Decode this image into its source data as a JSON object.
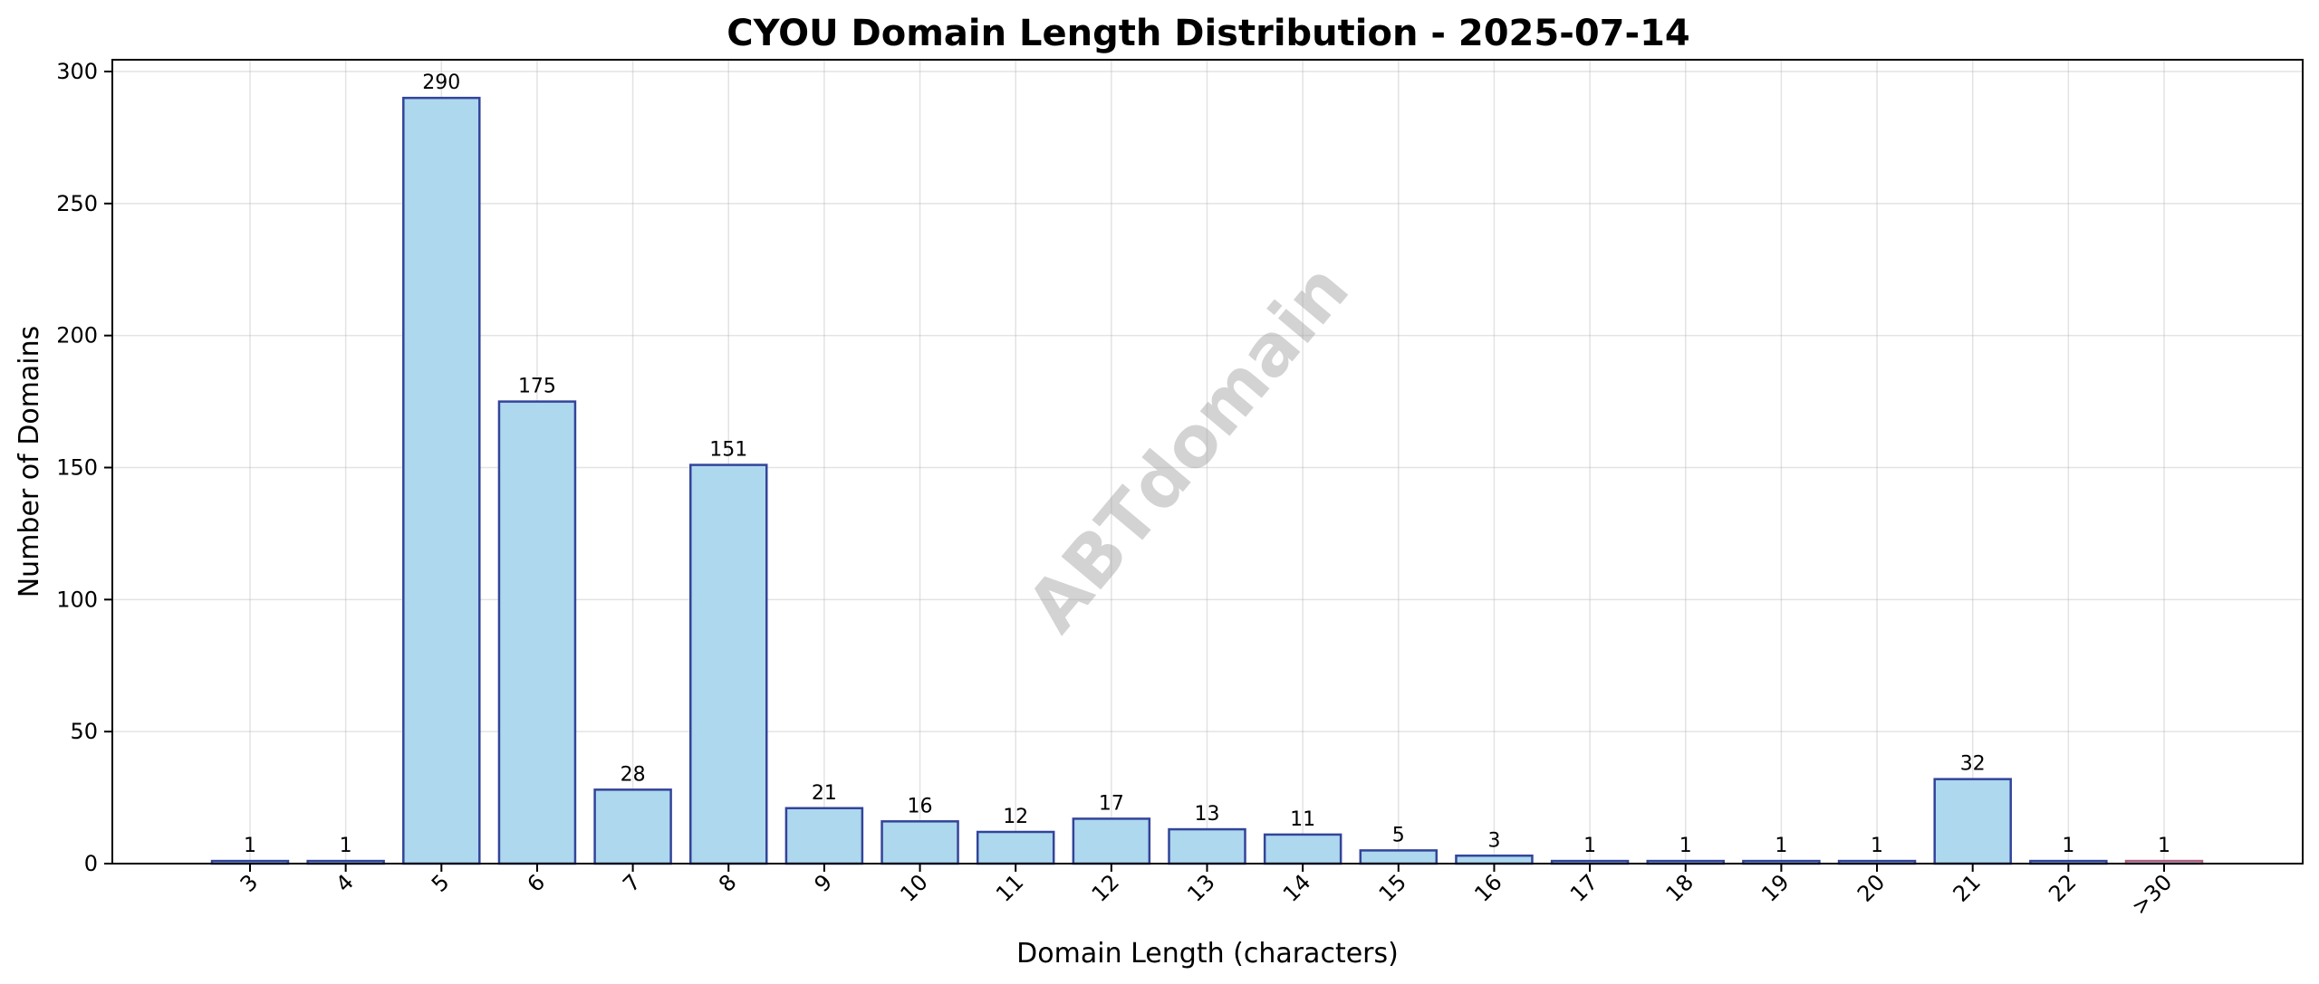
{
  "chart_data": {
    "type": "bar",
    "title": "CYOU Domain Length Distribution - 2025-07-14",
    "xlabel": "Domain Length (characters)",
    "ylabel": "Number of Domains",
    "categories": [
      "3",
      "4",
      "5",
      "6",
      "7",
      "8",
      "9",
      "10",
      "11",
      "12",
      "13",
      "14",
      "15",
      "16",
      "17",
      "18",
      "19",
      "20",
      "21",
      "22",
      ">30"
    ],
    "values": [
      1,
      1,
      290,
      175,
      28,
      151,
      21,
      16,
      12,
      17,
      13,
      11,
      5,
      3,
      1,
      1,
      1,
      1,
      32,
      1,
      1
    ],
    "ylim": [
      0,
      300
    ],
    "yticks": [
      0,
      50,
      100,
      150,
      200,
      250,
      300
    ],
    "grid": true,
    "watermark": "ABTdomain",
    "colors": {
      "bar_fill": "#add8ee",
      "bar_edge": "#33449a",
      "last_bar_edge": "#b06080"
    }
  }
}
